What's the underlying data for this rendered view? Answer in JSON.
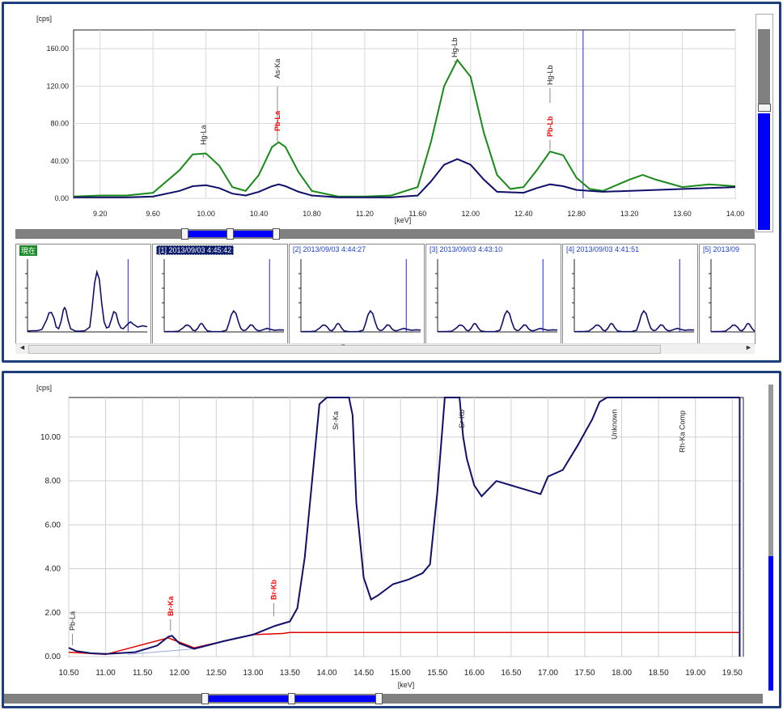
{
  "top_chart": {
    "y_unit": "[cps]",
    "x_unit": "[keV]",
    "y_ticks": [
      "0.00",
      "40.00",
      "80.00",
      "120.00",
      "160.00"
    ],
    "x_ticks": [
      "9.20",
      "9.60",
      "10.00",
      "10.40",
      "10.80",
      "11.20",
      "11.60",
      "12.00",
      "12.40",
      "12.80",
      "13.20",
      "13.60",
      "14.00"
    ],
    "peak_labels_black": [
      "Hg-La",
      "As-Ka",
      "Hg-Lb",
      "Hg-Lb"
    ],
    "peak_labels_red": [
      "Pb-La",
      "Pb-Lb"
    ],
    "colors": {
      "green": "#1a8a1a",
      "blue": "#10106a",
      "cursor": "#2020ff",
      "red": "#ff0000"
    }
  },
  "history": {
    "current_label": "現在",
    "items": [
      "[1] 2013/09/03 4:45:42",
      "[2] 2013/09/03 4:44:27",
      "[3] 2013/09/03 4:43:10",
      "[4] 2013/09/03 4:41:51",
      "[5] 2013/09"
    ],
    "scroll_grip": "'''"
  },
  "bottom_chart": {
    "y_unit": "[cps]",
    "x_unit": "[keV]",
    "y_ticks": [
      "0.00",
      "2.00",
      "4.00",
      "6.00",
      "8.00",
      "10.00"
    ],
    "x_ticks": [
      "10.50",
      "11.00",
      "11.50",
      "12.00",
      "12.50",
      "13.00",
      "13.50",
      "14.00",
      "14.50",
      "15.00",
      "15.50",
      "16.00",
      "16.50",
      "17.00",
      "17.50",
      "18.00",
      "18.50",
      "19.00",
      "19.50"
    ],
    "peak_labels_black": [
      "Pb-La",
      "Sr-Ka",
      "Sr-Kb",
      "Unknown",
      "Rh-Ka Comp"
    ],
    "peak_labels_red": [
      "Br-Ka",
      "Br-Kb"
    ]
  },
  "chart_data": [
    {
      "type": "line",
      "xlabel": "keV",
      "ylabel": "cps",
      "xlim": [
        9.0,
        14.0
      ],
      "ylim": [
        0,
        180
      ],
      "series": [
        {
          "color": "green",
          "x": [
            9.0,
            9.2,
            9.4,
            9.6,
            9.8,
            9.9,
            10.0,
            10.1,
            10.2,
            10.3,
            10.4,
            10.5,
            10.55,
            10.6,
            10.7,
            10.8,
            11.0,
            11.2,
            11.4,
            11.6,
            11.7,
            11.8,
            11.9,
            12.0,
            12.1,
            12.2,
            12.3,
            12.4,
            12.5,
            12.6,
            12.7,
            12.8,
            12.9,
            13.0,
            13.2,
            13.3,
            13.4,
            13.6,
            13.8,
            14.0
          ],
          "values": [
            2,
            3,
            3,
            6,
            30,
            47,
            48,
            35,
            12,
            8,
            25,
            55,
            60,
            55,
            28,
            8,
            2,
            2,
            3,
            12,
            60,
            120,
            148,
            130,
            70,
            25,
            10,
            12,
            30,
            50,
            46,
            22,
            10,
            8,
            20,
            25,
            20,
            12,
            15,
            13
          ]
        },
        {
          "color": "blue",
          "x": [
            9.0,
            9.4,
            9.6,
            9.8,
            9.9,
            10.0,
            10.1,
            10.2,
            10.3,
            10.4,
            10.5,
            10.55,
            10.6,
            10.7,
            10.8,
            11.0,
            11.4,
            11.6,
            11.7,
            11.8,
            11.9,
            12.0,
            12.1,
            12.2,
            12.4,
            12.5,
            12.6,
            12.7,
            12.8,
            13.0,
            13.4,
            13.8,
            14.0
          ],
          "values": [
            1,
            1,
            2,
            8,
            13,
            14,
            11,
            5,
            3,
            7,
            13,
            15,
            13,
            7,
            3,
            1,
            1,
            3,
            18,
            36,
            42,
            36,
            20,
            7,
            6,
            11,
            15,
            13,
            9,
            7,
            9,
            11,
            12
          ]
        }
      ],
      "annotations": [
        "Hg-La",
        "As-Ka",
        "Pb-La",
        "Hg-Lb",
        "Hg-Lb",
        "Pb-Lb"
      ]
    },
    {
      "type": "line",
      "xlabel": "keV",
      "ylabel": "cps",
      "xlim": [
        10.5,
        19.65
      ],
      "ylim": [
        0,
        11.8
      ],
      "series": [
        {
          "color": "navy",
          "x": [
            10.5,
            10.6,
            10.8,
            11.0,
            11.4,
            11.7,
            11.85,
            11.9,
            12.0,
            12.2,
            12.6,
            13.0,
            13.3,
            13.5,
            13.6,
            13.7,
            13.8,
            13.9,
            14.0,
            14.3,
            14.35,
            14.4,
            14.5,
            14.6,
            14.7,
            14.9,
            15.1,
            15.3,
            15.4,
            15.5,
            15.6,
            15.8,
            15.85,
            15.9,
            16.0,
            16.1,
            16.3,
            16.5,
            16.7,
            16.9,
            17.0,
            17.2,
            17.4,
            17.5,
            17.6,
            17.7,
            17.8,
            19.6
          ],
          "values": [
            0.4,
            0.25,
            0.15,
            0.12,
            0.2,
            0.5,
            0.9,
            0.95,
            0.6,
            0.35,
            0.7,
            1.0,
            1.4,
            1.6,
            2.2,
            4.5,
            8.0,
            11.5,
            11.8,
            11.8,
            11.0,
            7.0,
            3.6,
            2.6,
            2.8,
            3.3,
            3.5,
            3.8,
            4.2,
            7.5,
            11.8,
            11.8,
            10.0,
            9.0,
            7.8,
            7.3,
            8.0,
            7.8,
            7.6,
            7.4,
            8.2,
            8.5,
            9.6,
            10.2,
            10.8,
            11.6,
            11.8,
            11.8
          ]
        },
        {
          "color": "red",
          "x": [
            10.5,
            11.0,
            11.85,
            12.2,
            13.0,
            13.4,
            13.5,
            19.6
          ],
          "values": [
            0.2,
            0.1,
            0.85,
            0.4,
            1.0,
            1.05,
            1.1,
            1.1
          ]
        }
      ],
      "annotations": [
        "Pb-La",
        "Br-Ka",
        "Br-Kb",
        "Sr-Ka",
        "Sr-Kb",
        "Unknown",
        "Rh-Ka Comp"
      ]
    }
  ]
}
